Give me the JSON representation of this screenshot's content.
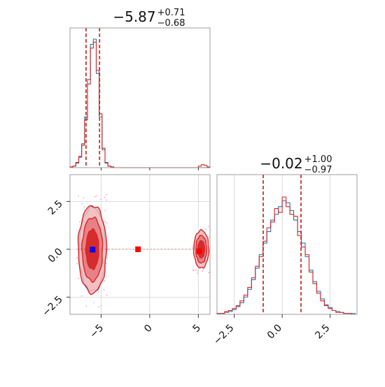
{
  "chart_data": [
    {
      "type": "histogram",
      "panel": "marginal-param-1",
      "title": {
        "main": "−5.87",
        "sup": "+0.71",
        "sub": "−0.68"
      },
      "xlim": [
        -8.2,
        6.2
      ],
      "grid": true,
      "quantile_lines": {
        "lower": -6.55,
        "upper": -5.16,
        "color": "#c0392b"
      },
      "bins": [
        -8.2,
        -7.9,
        -7.6,
        -7.3,
        -7.0,
        -6.7,
        -6.4,
        -6.1,
        -5.8,
        -5.5,
        -5.2,
        -4.9,
        -4.6,
        -4.3,
        -4.0,
        -3.7,
        -3.4,
        -3.1,
        -2.8,
        -2.5,
        -2.2,
        -1.9,
        -1.6,
        -1.3,
        -1.0,
        -0.7,
        -0.4,
        -0.1,
        0.2,
        0.5,
        0.8,
        1.1,
        1.4,
        1.7,
        2.0,
        2.3,
        2.6,
        2.9,
        3.2,
        3.5,
        3.8,
        4.1,
        4.4,
        4.7,
        5.0,
        5.3,
        5.6,
        5.9,
        6.2
      ],
      "series": [
        {
          "color": "#1f77b4",
          "counts": [
            1,
            2,
            6,
            14,
            32,
            68,
            118,
            165,
            172,
            126,
            68,
            24,
            6,
            2,
            1,
            0,
            0,
            0,
            0,
            0,
            0,
            0,
            0,
            0,
            0,
            0,
            0,
            0,
            0,
            0,
            0,
            0,
            0,
            0,
            0,
            0,
            0,
            0,
            0,
            0,
            0,
            0,
            0,
            0,
            0,
            0,
            0,
            0
          ]
        },
        {
          "color": "#d62728",
          "counts": [
            1,
            2,
            7,
            15,
            30,
            64,
            112,
            160,
            168,
            130,
            72,
            26,
            7,
            2,
            1,
            0,
            0,
            0,
            0,
            0,
            0,
            0,
            0,
            0,
            0,
            0,
            0,
            0,
            0,
            0,
            0,
            0,
            0,
            0,
            0,
            0,
            0,
            0,
            0,
            0,
            0,
            0,
            0,
            0,
            2,
            4,
            3,
            1
          ]
        }
      ]
    },
    {
      "type": "scatter",
      "panel": "joint-param-1-param-2",
      "xlim": [
        -8.2,
        6.2
      ],
      "ylim": [
        -3.4,
        3.9
      ],
      "xticks": [
        "−5",
        "0",
        "5"
      ],
      "xtick_values": [
        -5,
        0,
        5
      ],
      "yticks": [
        "2.5",
        "0.0",
        "−2.5"
      ],
      "ytick_values": [
        2.5,
        0.0,
        -2.5
      ],
      "grid": true,
      "contour_sets": [
        {
          "color": "#1f77b4",
          "center": [
            -5.9,
            0.0
          ],
          "sigma": [
            0.62,
            1.0
          ]
        },
        {
          "color": "#d62728",
          "center": [
            -5.9,
            0.0
          ],
          "sigma": [
            0.66,
            1.04
          ]
        },
        {
          "color": "#d62728",
          "center": [
            5.3,
            0.0
          ],
          "sigma": [
            0.35,
            0.45
          ]
        }
      ],
      "markers": [
        {
          "x": -5.87,
          "y": -0.02,
          "color": "#0000ff",
          "shape": "square"
        },
        {
          "x": -1.2,
          "y": 0.0,
          "color": "#ff0000",
          "shape": "square"
        },
        {
          "x": 5.1,
          "y": -0.1,
          "color": "#ff0000",
          "shape": "square"
        }
      ]
    },
    {
      "type": "histogram",
      "panel": "marginal-param-2",
      "title": {
        "main": "−0.02",
        "sup": "+1.00",
        "sub": "−0.97"
      },
      "xlim": [
        -3.4,
        3.9
      ],
      "xticks": [
        "−2.5",
        "0.0",
        "2.5"
      ],
      "xtick_values": [
        -2.5,
        0.0,
        2.5
      ],
      "grid": true,
      "quantile_lines": {
        "lower": -0.99,
        "upper": 0.98,
        "color": "#c0392b"
      },
      "bins": [
        -3.4,
        -3.2,
        -3.0,
        -2.8,
        -2.6,
        -2.4,
        -2.2,
        -2.0,
        -1.8,
        -1.6,
        -1.4,
        -1.2,
        -1.0,
        -0.8,
        -0.6,
        -0.4,
        -0.2,
        0.0,
        0.2,
        0.4,
        0.6,
        0.8,
        1.0,
        1.2,
        1.4,
        1.6,
        1.8,
        2.0,
        2.2,
        2.4,
        2.6,
        2.8,
        3.0,
        3.2,
        3.4,
        3.6,
        3.8
      ],
      "series": [
        {
          "color": "#1f77b4",
          "counts": [
            1,
            1,
            2,
            3,
            5,
            8,
            12,
            18,
            26,
            36,
            48,
            62,
            74,
            86,
            98,
            104,
            112,
            118,
            116,
            108,
            98,
            86,
            74,
            60,
            46,
            34,
            24,
            16,
            10,
            7,
            4,
            3,
            2,
            1,
            1,
            1
          ]
        },
        {
          "color": "#d62728",
          "counts": [
            1,
            1,
            3,
            4,
            6,
            9,
            14,
            20,
            28,
            38,
            50,
            60,
            76,
            90,
            96,
            110,
            106,
            122,
            112,
            104,
            102,
            82,
            70,
            62,
            44,
            32,
            22,
            14,
            9,
            6,
            4,
            2,
            2,
            1,
            1,
            0
          ]
        }
      ]
    }
  ]
}
